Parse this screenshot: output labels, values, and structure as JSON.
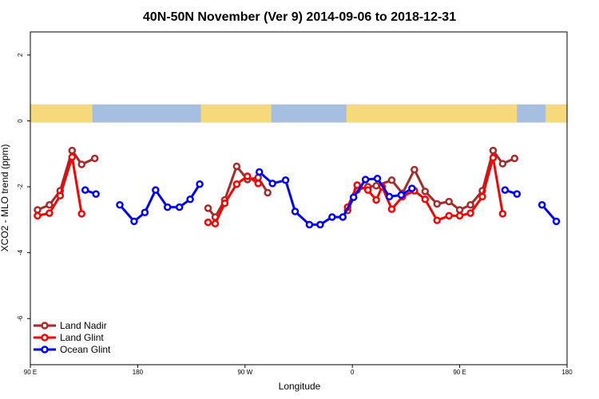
{
  "chart_data": {
    "type": "line",
    "title": "40N-50N November (Ver 9)   2014-09-06 to 2018-12-31",
    "xlabel": "Longitude",
    "ylabel": "XCO2 - MLO trend (ppm)",
    "x_ticks": [
      {
        "value": 90,
        "label": "90 E"
      },
      {
        "value": 180,
        "label": "180"
      },
      {
        "value": 270,
        "label": "90 W"
      },
      {
        "value": 360,
        "label": "0"
      },
      {
        "value": 450,
        "label": "90 E"
      },
      {
        "value": 540,
        "label": "180"
      }
    ],
    "y_ticks": [
      2,
      0,
      -2,
      -4,
      -6
    ],
    "xlim": [
      90,
      540
    ],
    "ylim": [
      -7.4,
      2.7
    ],
    "grid": false,
    "legend_position": "bottom-left",
    "colors": {
      "land_nadir": "#a52a2a",
      "land_glint": "#ff0000",
      "ocean_glint": "#0000ff",
      "map_land": "#f5d97a",
      "map_ocean": "#a6bedf"
    },
    "series": [
      {
        "name": "Land Nadir",
        "color": "#a52a2a",
        "segments": [
          [
            [
              96,
              -2.7
            ],
            [
              106,
              -2.55
            ],
            [
              115,
              -2.12
            ],
            [
              125,
              -0.9
            ],
            [
              133,
              -1.32
            ],
            [
              144,
              -1.14
            ]
          ],
          [
            [
              239,
              -2.65
            ],
            [
              245,
              -2.92
            ],
            [
              253,
              -2.4
            ],
            [
              263,
              -1.38
            ],
            [
              272,
              -1.78
            ],
            [
              281,
              -1.72
            ],
            [
              289,
              -2.18
            ]
          ],
          [
            [
              356,
              -2.72
            ],
            [
              364,
              -2.1
            ],
            [
              373,
              -2.0
            ],
            [
              380,
              -1.97
            ],
            [
              393,
              -1.8
            ],
            [
              402,
              -2.2
            ],
            [
              412,
              -1.48
            ],
            [
              421,
              -2.14
            ],
            [
              431,
              -2.52
            ],
            [
              441,
              -2.45
            ],
            [
              450,
              -2.7
            ],
            [
              459,
              -2.55
            ],
            [
              469,
              -2.12
            ],
            [
              478,
              -0.9
            ],
            [
              486,
              -1.3
            ],
            [
              496,
              -1.14
            ]
          ]
        ]
      },
      {
        "name": "Land Glint",
        "color": "#ff0000",
        "segments": [
          [
            [
              96,
              -2.88
            ],
            [
              106,
              -2.8
            ],
            [
              115,
              -2.27
            ],
            [
              125,
              -1.1
            ],
            [
              133,
              -2.82
            ]
          ],
          [
            [
              239,
              -3.08
            ],
            [
              245,
              -3.12
            ],
            [
              253,
              -2.5
            ],
            [
              263,
              -1.92
            ],
            [
              272,
              -1.68
            ],
            [
              281,
              -1.9
            ]
          ],
          [
            [
              356,
              -2.62
            ],
            [
              364,
              -1.95
            ],
            [
              373,
              -2.1
            ],
            [
              380,
              -2.4
            ],
            [
              385,
              -2.0
            ],
            [
              393,
              -2.68
            ],
            [
              402,
              -2.3
            ],
            [
              412,
              -2.12
            ],
            [
              421,
              -2.38
            ],
            [
              431,
              -3.02
            ],
            [
              441,
              -2.88
            ],
            [
              450,
              -2.88
            ],
            [
              459,
              -2.8
            ],
            [
              469,
              -2.3
            ],
            [
              478,
              -1.12
            ],
            [
              486,
              -2.82
            ]
          ]
        ]
      },
      {
        "name": "Ocean Glint",
        "color": "#0000ff",
        "segments": [
          [
            [
              136,
              -2.1
            ],
            [
              145,
              -2.22
            ]
          ],
          [
            [
              165,
              -2.55
            ],
            [
              177,
              -3.05
            ],
            [
              186,
              -2.78
            ],
            [
              195,
              -2.1
            ],
            [
              205,
              -2.62
            ],
            [
              215,
              -2.62
            ],
            [
              224,
              -2.38
            ],
            [
              232,
              -1.92
            ]
          ],
          [
            [
              282,
              -1.55
            ],
            [
              293,
              -1.9
            ],
            [
              304,
              -1.8
            ],
            [
              312,
              -2.75
            ],
            [
              324,
              -3.15
            ],
            [
              333,
              -3.15
            ],
            [
              343,
              -2.92
            ],
            [
              352,
              -2.92
            ],
            [
              361,
              -2.32
            ],
            [
              371,
              -1.78
            ],
            [
              381,
              -1.75
            ],
            [
              391,
              -2.3
            ],
            [
              401,
              -2.25
            ],
            [
              410,
              -2.05
            ]
          ],
          [
            [
              488,
              -2.1
            ],
            [
              498,
              -2.22
            ]
          ],
          [
            [
              519,
              -2.55
            ],
            [
              531,
              -3.05
            ]
          ]
        ]
      }
    ],
    "map_strip": {
      "land_ranges": [
        [
          90,
          142
        ],
        [
          233,
          292
        ],
        [
          355,
          498
        ],
        [
          522,
          540
        ]
      ]
    }
  }
}
